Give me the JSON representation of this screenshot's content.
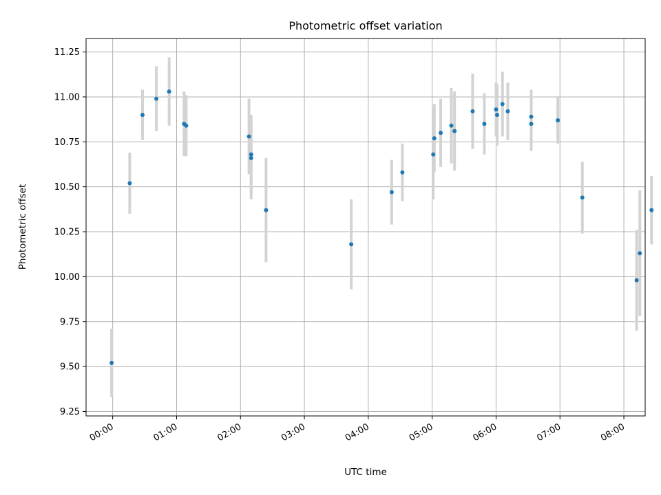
{
  "chart_data": {
    "type": "scatter",
    "title": "Photometric offset variation",
    "xlabel": "UTC time",
    "ylabel": "Photometric offset",
    "xlim": [
      "-00:25",
      "08:20"
    ],
    "ylim": [
      9.225,
      11.325
    ],
    "xticks": [
      "00:00",
      "01:00",
      "02:00",
      "03:00",
      "04:00",
      "05:00",
      "06:00",
      "07:00",
      "08:00"
    ],
    "yticks": [
      "9.25",
      "9.50",
      "9.75",
      "10.00",
      "10.25",
      "10.50",
      "10.75",
      "11.00",
      "11.25"
    ],
    "grid": true,
    "marker_color": "#1f77b4",
    "errorbar_color": "#d3d3d3",
    "points": [
      {
        "x": "-00:01",
        "y": 9.52,
        "err": 0.19
      },
      {
        "x": "00:16",
        "y": 10.52,
        "err": 0.17
      },
      {
        "x": "00:28",
        "y": 10.9,
        "err": 0.14
      },
      {
        "x": "00:41",
        "y": 10.99,
        "err": 0.18
      },
      {
        "x": "00:53",
        "y": 11.03,
        "err": 0.19
      },
      {
        "x": "01:07",
        "y": 10.85,
        "err": 0.18
      },
      {
        "x": "01:09",
        "y": 10.84,
        "err": 0.17
      },
      {
        "x": "02:08",
        "y": 10.78,
        "err": 0.21
      },
      {
        "x": "02:10",
        "y": 10.68,
        "err": 0.22
      },
      {
        "x": "02:10",
        "y": 10.66,
        "err": 0.23
      },
      {
        "x": "02:24",
        "y": 10.37,
        "err": 0.29
      },
      {
        "x": "03:44",
        "y": 10.18,
        "err": 0.25
      },
      {
        "x": "04:22",
        "y": 10.47,
        "err": 0.18
      },
      {
        "x": "04:32",
        "y": 10.58,
        "err": 0.16
      },
      {
        "x": "05:01",
        "y": 10.68,
        "err": 0.25
      },
      {
        "x": "05:02",
        "y": 10.77,
        "err": 0.19
      },
      {
        "x": "05:08",
        "y": 10.8,
        "err": 0.19
      },
      {
        "x": "05:18",
        "y": 10.84,
        "err": 0.21
      },
      {
        "x": "05:21",
        "y": 10.81,
        "err": 0.22
      },
      {
        "x": "05:38",
        "y": 10.92,
        "err": 0.21
      },
      {
        "x": "05:49",
        "y": 10.85,
        "err": 0.17
      },
      {
        "x": "06:00",
        "y": 10.93,
        "err": 0.15
      },
      {
        "x": "06:01",
        "y": 10.9,
        "err": 0.17
      },
      {
        "x": "06:06",
        "y": 10.96,
        "err": 0.18
      },
      {
        "x": "06:11",
        "y": 10.92,
        "err": 0.16
      },
      {
        "x": "06:33",
        "y": 10.89,
        "err": 0.15
      },
      {
        "x": "06:33",
        "y": 10.85,
        "err": 0.15
      },
      {
        "x": "06:58",
        "y": 10.87,
        "err": 0.13
      },
      {
        "x": "07:21",
        "y": 10.44,
        "err": 0.2
      },
      {
        "x": "08:12",
        "y": 9.98,
        "err": 0.28
      },
      {
        "x": "08:15",
        "y": 10.13,
        "err": 0.35
      },
      {
        "x": "08:26",
        "y": 10.37,
        "err": 0.19
      }
    ]
  }
}
